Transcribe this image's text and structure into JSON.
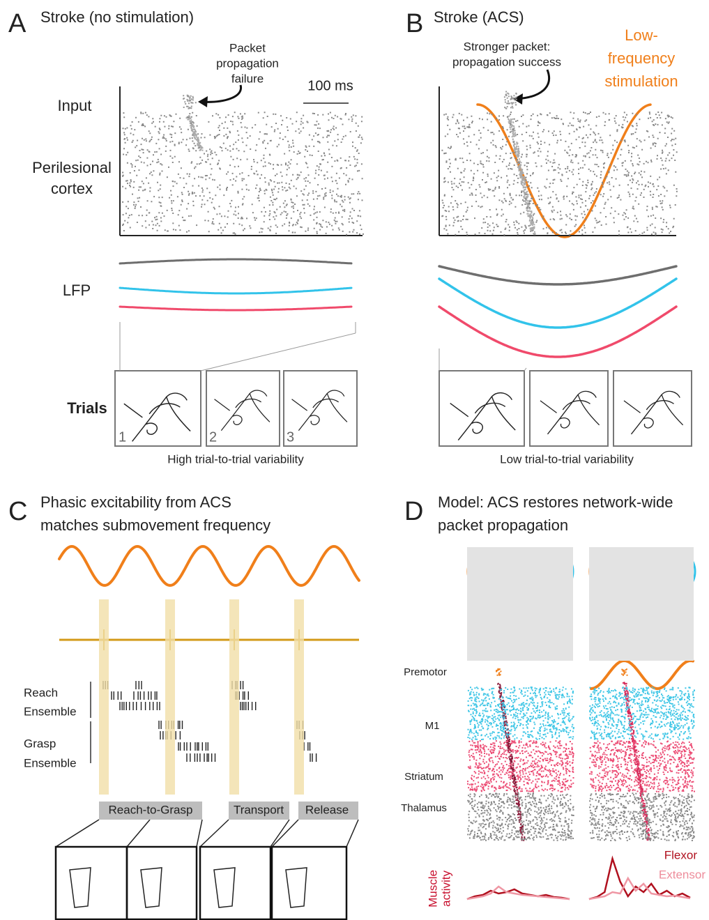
{
  "panel_a": {
    "letter": "A",
    "title": "Stroke (no stimulation)",
    "annotation": [
      "Packet",
      "propagation",
      "failure"
    ],
    "scale_bar": "100 ms",
    "row_labels": {
      "input": "Input",
      "cortex": [
        "Perilesional",
        "cortex"
      ],
      "lfp": "LFP",
      "trials": "Trials"
    },
    "trial_numbers": [
      "1",
      "2",
      "3"
    ],
    "caption": "High trial-to-trial variability"
  },
  "panel_b": {
    "letter": "B",
    "title": "Stroke (ACS)",
    "annotation": [
      "Stronger packet:",
      "propagation success"
    ],
    "stimulation": [
      "Low-",
      "frequency",
      "stimulation"
    ],
    "caption": "Low trial-to-trial variability"
  },
  "panel_c": {
    "letter": "C",
    "title": [
      "Phasic excitability from ACS",
      "matches submovement frequency"
    ],
    "ensembles": [
      [
        "Reach",
        "Ensemble"
      ],
      [
        "Grasp",
        "Ensemble"
      ]
    ],
    "phases": [
      "Reach-to-Grasp",
      "Transport",
      "Release"
    ]
  },
  "panel_d": {
    "letter": "D",
    "title": [
      "Model: ACS restores network-wide",
      "packet propagation"
    ],
    "regions": [
      "Premotor",
      "M1",
      "Striatum",
      "Thalamus"
    ],
    "muscle_label": [
      "Muscle",
      "activity"
    ],
    "legend": [
      "Flexor",
      "Extensor"
    ]
  }
}
